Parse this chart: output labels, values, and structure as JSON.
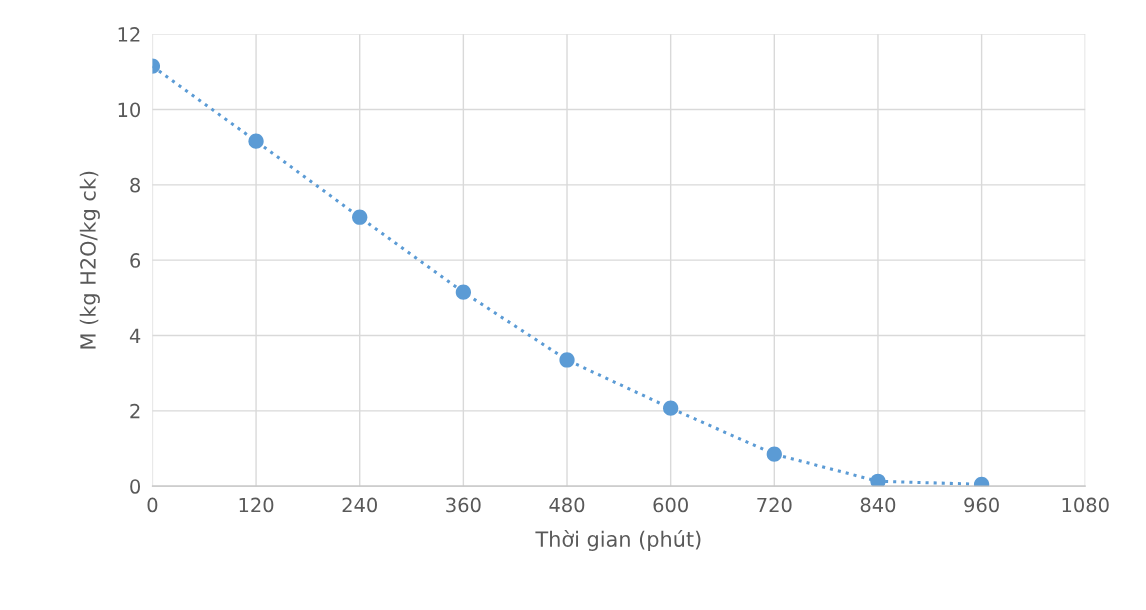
{
  "chart_data": {
    "type": "line",
    "xlabel": "Thời gian (phút)",
    "ylabel": "M (kg H2O/kg ck)",
    "x": [
      0,
      120,
      240,
      360,
      480,
      600,
      720,
      840,
      960
    ],
    "series": [
      {
        "color": "#5b9bd5",
        "values": [
          11.15,
          9.16,
          7.14,
          5.15,
          3.35,
          2.07,
          0.85,
          0.13,
          0.05
        ]
      }
    ],
    "xlim": [
      0,
      1080
    ],
    "xticks": [
      0,
      120,
      240,
      360,
      480,
      600,
      720,
      840,
      960,
      1080
    ],
    "ylim": [
      0,
      12
    ],
    "yticks": [
      0,
      2,
      4,
      6,
      8,
      10,
      12
    ],
    "grid": true,
    "marker": "circle",
    "line_style": "dotted"
  }
}
